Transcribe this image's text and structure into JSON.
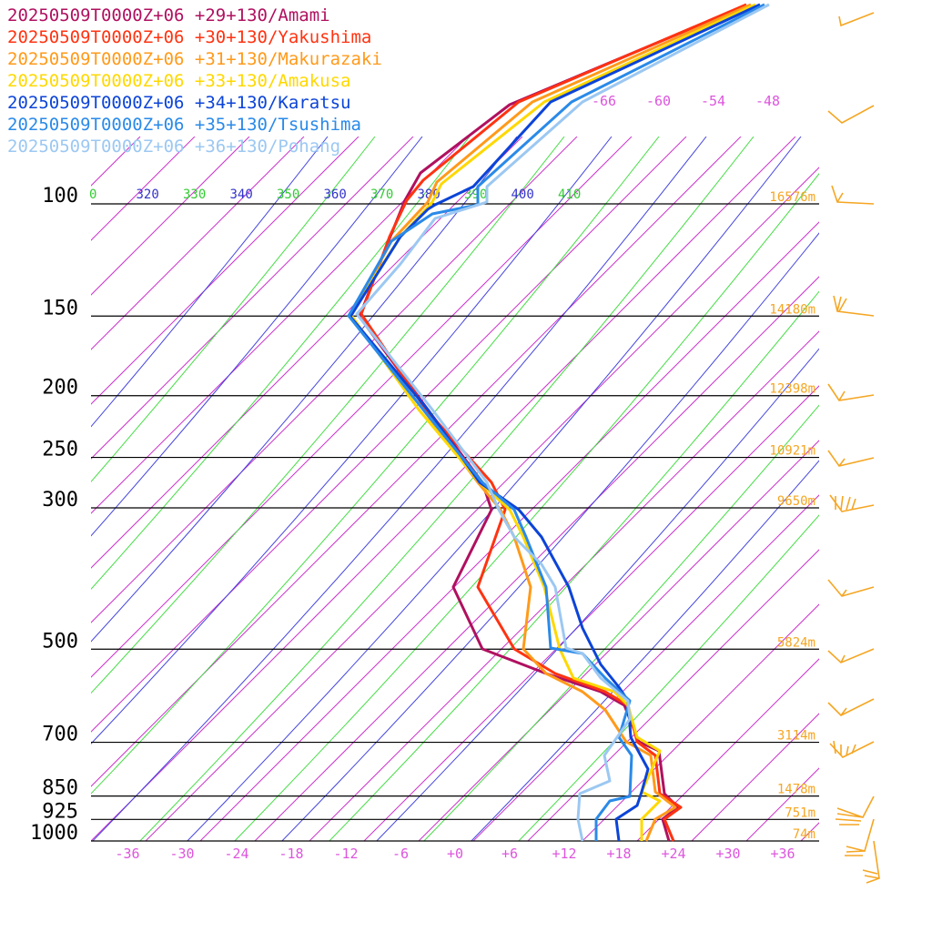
{
  "chart_data": {
    "type": "line",
    "title": "",
    "legend_position": "top-left",
    "legend": [
      {
        "label": "20250509T0000Z+06 +29+130/Amami",
        "color": "#b0105f"
      },
      {
        "label": "20250509T0000Z+06 +30+130/Yakushima",
        "color": "#ff3311"
      },
      {
        "label": "20250509T0000Z+06 +31+130/Makurazaki",
        "color": "#ff9a1a"
      },
      {
        "label": "20250509T0000Z+06 +33+130/Amakusa",
        "color": "#ffd800"
      },
      {
        "label": "20250509T0000Z+06 +34+130/Karatsu",
        "color": "#0c44d8"
      },
      {
        "label": "20250509T0000Z+06 +35+130/Tsushima",
        "color": "#2a8ae8"
      },
      {
        "label": "20250509T0000Z+06 +36+130/Pohang",
        "color": "#9cc8f2"
      }
    ],
    "pressure_levels": [
      {
        "p": 1000,
        "label": "1000",
        "height": "74m"
      },
      {
        "p": 925,
        "label": "925",
        "height": "751m"
      },
      {
        "p": 850,
        "label": "850",
        "height": "1478m"
      },
      {
        "p": 700,
        "label": "700",
        "height": "3114m"
      },
      {
        "p": 500,
        "label": "500",
        "height": "5824m"
      },
      {
        "p": 300,
        "label": "300",
        "height": "9650m"
      },
      {
        "p": 250,
        "label": "250",
        "height": "10921m"
      },
      {
        "p": 200,
        "label": "200",
        "height": "12398m"
      },
      {
        "p": 150,
        "label": "150",
        "height": "14180m"
      },
      {
        "p": 100,
        "label": "100",
        "height": "16576m"
      }
    ],
    "x_ticks": [
      "-36",
      "-30",
      "-24",
      "-18",
      "-12",
      "-6",
      "+0",
      "+6",
      "+12",
      "+18",
      "+24",
      "+30",
      "+36"
    ],
    "upper_temp_labels": [
      "-66",
      "-60",
      "-54",
      "-48"
    ],
    "theta_labels": [
      {
        "text": "0",
        "color": "#33cc33"
      },
      {
        "text": "320",
        "color": "#3333cc"
      },
      {
        "text": "330",
        "color": "#33cc33"
      },
      {
        "text": "340",
        "color": "#3333cc"
      },
      {
        "text": "350",
        "color": "#33cc33"
      },
      {
        "text": "360",
        "color": "#3333cc"
      },
      {
        "text": "370",
        "color": "#33cc33"
      },
      {
        "text": "380",
        "color": "#3333cc"
      },
      {
        "text": "390",
        "color": "#33cc33"
      },
      {
        "text": "400",
        "color": "#3333cc"
      },
      {
        "text": "410",
        "color": "#33cc33"
      }
    ],
    "xlim": [
      -40,
      40
    ],
    "ylim": [
      1000,
      100
    ],
    "grid": true
  }
}
